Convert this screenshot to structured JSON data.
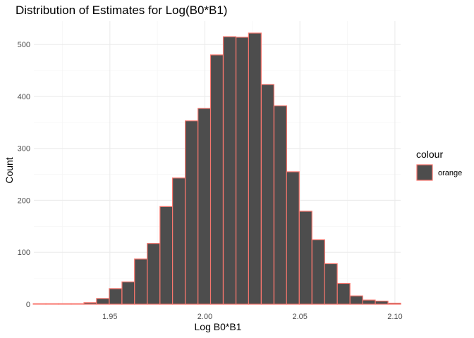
{
  "chart_data": {
    "type": "bar",
    "title": "Distribution of Estimates for Log(B0*B1)",
    "xlabel": "Log B0*B1",
    "ylabel": "Count",
    "xlim": [
      1.91,
      2.103
    ],
    "ylim": [
      0,
      545
    ],
    "x_ticks": [
      1.95,
      2.0,
      2.05,
      2.1
    ],
    "x_tick_labels": [
      "1.95",
      "2.00",
      "2.05",
      "2.10"
    ],
    "y_ticks": [
      0,
      100,
      200,
      300,
      400,
      500
    ],
    "y_tick_labels": [
      "0",
      "100",
      "200",
      "300",
      "400",
      "500"
    ],
    "grid": true,
    "bin_width": 0.00666,
    "bin_centers": [
      1.913,
      1.9197,
      1.9263,
      1.933,
      1.9397,
      1.9463,
      1.953,
      1.9597,
      1.9663,
      1.973,
      1.9797,
      1.9863,
      1.993,
      1.9997,
      2.0063,
      2.013,
      2.0197,
      2.0263,
      2.033,
      2.0397,
      2.0463,
      2.053,
      2.0597,
      2.0663,
      2.073,
      2.0797,
      2.0863,
      2.093,
      2.0997
    ],
    "values": [
      1,
      1,
      1,
      1,
      3,
      11,
      30,
      43,
      87,
      117,
      188,
      243,
      353,
      377,
      480,
      515,
      514,
      522,
      423,
      382,
      255,
      179,
      124,
      78,
      40,
      16,
      8,
      6,
      2
    ],
    "bar_fill": "#4d4d4d",
    "bar_outline": "#f8766d",
    "legend": {
      "title": "colour",
      "entries": [
        "orange"
      ],
      "placement": "right"
    }
  }
}
